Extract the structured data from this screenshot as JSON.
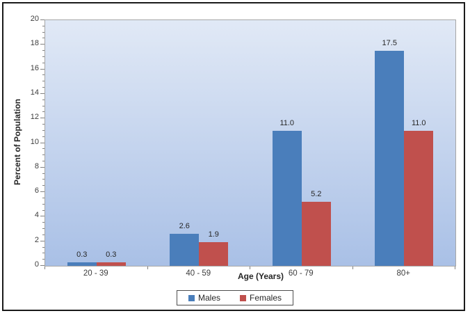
{
  "figure": {
    "background": "#ffffff",
    "frame_color": "#1a1a1a"
  },
  "chart_data": {
    "type": "bar",
    "title": "",
    "categories": [
      "20 - 39",
      "40 - 59",
      "60 - 79",
      "80+"
    ],
    "series": [
      {
        "name": "Males",
        "color": "#4a7ebb",
        "values": [
          0.3,
          2.6,
          11.0,
          17.5
        ]
      },
      {
        "name": "Females",
        "color": "#c0504d",
        "values": [
          0.3,
          1.9,
          5.2,
          11.0
        ]
      }
    ],
    "xlabel": "Age (Years)",
    "ylabel": "Percent of Population",
    "ylim": [
      0,
      20
    ],
    "y_major_step": 2,
    "y_minor_step": 0.5,
    "y_tick_labels": [
      "0",
      "2",
      "4",
      "6",
      "8",
      "10",
      "12",
      "14",
      "16",
      "18",
      "20"
    ],
    "grid": false,
    "data_labels_shown": true,
    "legend_position": "bottom",
    "plot_background": {
      "top": "#e1e9f6",
      "bottom": "#a9c0e6"
    },
    "plot_border_color": "#a6a6a6",
    "tick_color": "#808080",
    "legend_border_color": "#4d4d4d"
  }
}
